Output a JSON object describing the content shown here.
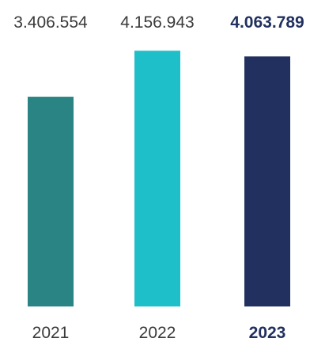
{
  "chart_data": {
    "type": "bar",
    "categories": [
      "2021",
      "2022",
      "2023"
    ],
    "values": [
      3406554,
      4156943,
      4063789
    ],
    "value_labels": [
      "3.406.554",
      "4.156.943",
      "4.063.789"
    ],
    "colors": [
      "#2A8484",
      "#1FBFC9",
      "#21305F"
    ],
    "highlight_index": 2,
    "highlight_color": "#21305F",
    "label_color": "#3A3A3A",
    "ylim": [
      0,
      4390000
    ],
    "title": "",
    "xlabel": "",
    "ylabel": "",
    "grid": false,
    "legend": "none"
  }
}
